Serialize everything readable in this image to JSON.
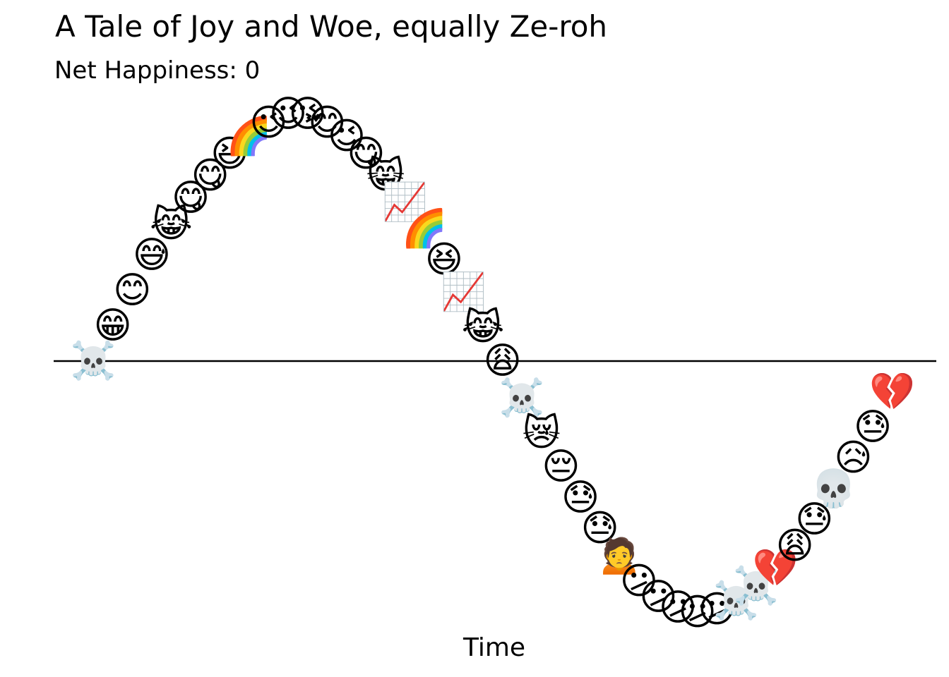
{
  "chart_data": {
    "type": "scatter",
    "title": "A Tale of Joy and Woe, equally Ze-roh",
    "subtitle": "Net Happiness: 0",
    "xlabel": "Time",
    "ylabel": "",
    "axis_line": "y = 0",
    "grid": false,
    "marker": "emoji",
    "xlim": [
      0,
      45
    ],
    "ylim": [
      -3.6,
      3.6
    ],
    "points": [
      {
        "x": 0,
        "y": 0.0,
        "emoji": "☠️",
        "icon": "skull-and-crossbones"
      },
      {
        "x": 1,
        "y": 0.4,
        "emoji": "😁",
        "icon": "beaming-face"
      },
      {
        "x": 2,
        "y": 0.8,
        "emoji": "😊",
        "icon": "smiling-face"
      },
      {
        "x": 3,
        "y": 1.2,
        "emoji": "😅",
        "icon": "grinning-sweat-face"
      },
      {
        "x": 4,
        "y": 1.55,
        "emoji": "😹",
        "icon": "cat-tears-of-joy"
      },
      {
        "x": 5,
        "y": 1.85,
        "emoji": "😋",
        "icon": "yum-face"
      },
      {
        "x": 6,
        "y": 2.1,
        "emoji": "😋",
        "icon": "yum-face"
      },
      {
        "x": 7,
        "y": 2.35,
        "emoji": "😆",
        "icon": "laughing-face"
      },
      {
        "x": 8,
        "y": 2.55,
        "emoji": "🌈",
        "icon": "rainbow"
      },
      {
        "x": 9,
        "y": 2.7,
        "emoji": "😉",
        "icon": "winking-face"
      },
      {
        "x": 10,
        "y": 2.8,
        "emoji": "😉",
        "icon": "winking-face"
      },
      {
        "x": 11,
        "y": 2.8,
        "emoji": "😘",
        "icon": "kissing-face"
      },
      {
        "x": 12,
        "y": 2.7,
        "emoji": "😊",
        "icon": "smiling-face"
      },
      {
        "x": 13,
        "y": 2.55,
        "emoji": "😉",
        "icon": "winking-face"
      },
      {
        "x": 14,
        "y": 2.35,
        "emoji": "😋",
        "icon": "yum-face"
      },
      {
        "x": 15,
        "y": 2.1,
        "emoji": "😸",
        "icon": "grinning-cat"
      },
      {
        "x": 16,
        "y": 1.8,
        "emoji": "📈",
        "icon": "chart-increasing"
      },
      {
        "x": 17,
        "y": 1.5,
        "emoji": "🌈",
        "icon": "rainbow"
      },
      {
        "x": 18,
        "y": 1.15,
        "emoji": "😆",
        "icon": "laughing-face"
      },
      {
        "x": 19,
        "y": 0.78,
        "emoji": "📈",
        "icon": "chart-increasing"
      },
      {
        "x": 20,
        "y": 0.38,
        "emoji": "😹",
        "icon": "cat-tears-of-joy"
      },
      {
        "x": 21,
        "y": 0.0,
        "emoji": "😩",
        "icon": "weary-face"
      },
      {
        "x": 22,
        "y": -0.42,
        "emoji": "☠️",
        "icon": "skull-and-crossbones"
      },
      {
        "x": 23,
        "y": -0.82,
        "emoji": "😿",
        "icon": "crying-cat"
      },
      {
        "x": 24,
        "y": -1.2,
        "emoji": "😔",
        "icon": "pensive-face"
      },
      {
        "x": 25,
        "y": -1.55,
        "emoji": "😓",
        "icon": "downcast-sweat-face"
      },
      {
        "x": 26,
        "y": -1.9,
        "emoji": "😓",
        "icon": "downcast-sweat-face"
      },
      {
        "x": 27,
        "y": -2.2,
        "emoji": "🙍",
        "icon": "person-frowning"
      },
      {
        "x": 28,
        "y": -2.5,
        "emoji": "😕",
        "icon": "confused-face"
      },
      {
        "x": 29,
        "y": -2.68,
        "emoji": "😕",
        "icon": "confused-face"
      },
      {
        "x": 30,
        "y": -2.8,
        "emoji": "😕",
        "icon": "confused-face"
      },
      {
        "x": 31,
        "y": -2.85,
        "emoji": "😕",
        "icon": "confused-face"
      },
      {
        "x": 32,
        "y": -2.82,
        "emoji": "😕",
        "icon": "confused-face"
      },
      {
        "x": 33,
        "y": -2.72,
        "emoji": "☠️",
        "icon": "skull-and-crossbones"
      },
      {
        "x": 34,
        "y": -2.55,
        "emoji": "☠️",
        "icon": "skull-and-crossbones"
      },
      {
        "x": 35,
        "y": -2.35,
        "emoji": "💔",
        "icon": "broken-heart"
      },
      {
        "x": 36,
        "y": -2.1,
        "emoji": "😩",
        "icon": "weary-face"
      },
      {
        "x": 37,
        "y": -1.8,
        "emoji": "😓",
        "icon": "downcast-sweat-face"
      },
      {
        "x": 38,
        "y": -1.45,
        "emoji": "💀",
        "icon": "skull"
      },
      {
        "x": 39,
        "y": -1.1,
        "emoji": "😥",
        "icon": "sad-relieved-face"
      },
      {
        "x": 40,
        "y": -0.75,
        "emoji": "😓",
        "icon": "downcast-sweat-face"
      },
      {
        "x": 41,
        "y": -0.35,
        "emoji": "💔",
        "icon": "broken-heart"
      }
    ]
  }
}
